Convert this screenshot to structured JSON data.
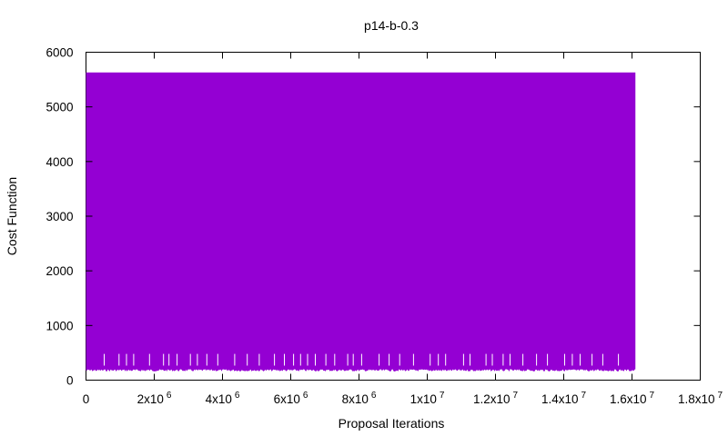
{
  "chart_data": {
    "type": "area",
    "title": "p14-b-0.3",
    "xlabel": "Proposal Iterations",
    "ylabel": "Cost Function",
    "xlim": [
      0,
      18000000
    ],
    "ylim": [
      0,
      6000
    ],
    "grid": false,
    "x_ticks": [
      {
        "value": 0,
        "mant": "0",
        "exp": ""
      },
      {
        "value": 2000000,
        "mant": "2x10",
        "exp": "6"
      },
      {
        "value": 4000000,
        "mant": "4x10",
        "exp": "6"
      },
      {
        "value": 6000000,
        "mant": "6x10",
        "exp": "6"
      },
      {
        "value": 8000000,
        "mant": "8x10",
        "exp": "6"
      },
      {
        "value": 10000000,
        "mant": "1x10",
        "exp": "7"
      },
      {
        "value": 12000000,
        "mant": "1.2x10",
        "exp": "7"
      },
      {
        "value": 14000000,
        "mant": "1.4x10",
        "exp": "7"
      },
      {
        "value": 16000000,
        "mant": "1.6x10",
        "exp": "7"
      },
      {
        "value": 18000000,
        "mant": "1.8x10",
        "exp": "7"
      }
    ],
    "y_ticks": [
      {
        "value": 0,
        "label": "0"
      },
      {
        "value": 1000,
        "label": "1000"
      },
      {
        "value": 2000,
        "label": "2000"
      },
      {
        "value": 3000,
        "label": "3000"
      },
      {
        "value": 4000,
        "label": "4000"
      },
      {
        "value": 5000,
        "label": "5000"
      },
      {
        "value": 6000,
        "label": "6000"
      }
    ],
    "series": [
      {
        "color": "#9400d3",
        "x_start": 0,
        "x_end": 16100000,
        "y_max": 5630,
        "y_min_typical": 200,
        "spikes_to": 480
      }
    ]
  }
}
